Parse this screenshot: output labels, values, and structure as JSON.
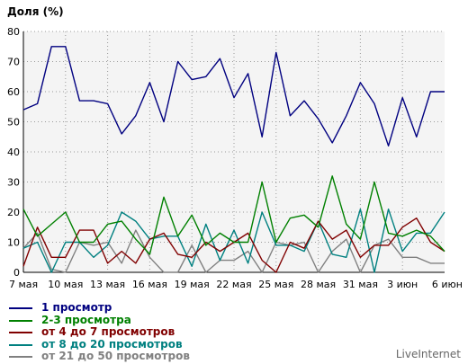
{
  "chart_data": {
    "type": "line",
    "ylabel": "Доля (%)",
    "ylim": [
      0,
      80
    ],
    "yticks": [
      0,
      10,
      20,
      30,
      40,
      50,
      60,
      70,
      80
    ],
    "grid": true,
    "legend_position": "bottom-left",
    "x": [
      "7 мая",
      "8 мая",
      "9 мая",
      "10 мая",
      "11 мая",
      "12 мая",
      "13 мая",
      "14 мая",
      "15 мая",
      "16 мая",
      "17 мая",
      "18 мая",
      "19 мая",
      "20 мая",
      "21 мая",
      "22 мая",
      "23 мая",
      "24 мая",
      "25 мая",
      "26 мая",
      "27 мая",
      "28 мая",
      "29 мая",
      "30 мая",
      "31 мая",
      "1 июн",
      "2 июн",
      "3 июн",
      "4 июн",
      "5 июн",
      "6 июн"
    ],
    "xtick_labels": [
      "7 мая",
      "10 мая",
      "13 мая",
      "16 мая",
      "19 мая",
      "22 мая",
      "25 мая",
      "28 мая",
      "31 мая",
      "3 июн",
      "6 июн"
    ],
    "xtick_index": [
      0,
      3,
      6,
      9,
      12,
      15,
      18,
      21,
      24,
      27,
      30
    ],
    "series": [
      {
        "name": "1 просмотр",
        "color": "#000080",
        "values": [
          54,
          56,
          75,
          75,
          57,
          57,
          56,
          46,
          52,
          63,
          50,
          70,
          64,
          65,
          71,
          58,
          66,
          45,
          73,
          52,
          57,
          51,
          43,
          52,
          63,
          56,
          42,
          58,
          45,
          60,
          60
        ]
      },
      {
        "name": "2-3 просмотра",
        "color": "#008000",
        "values": [
          21,
          12,
          16,
          20,
          10,
          10,
          16,
          17,
          11,
          6,
          25,
          12,
          19,
          9,
          13,
          10,
          10,
          30,
          10,
          18,
          19,
          15,
          32,
          16,
          11,
          30,
          13,
          12,
          14,
          12,
          7
        ]
      },
      {
        "name": "от 4 до 7 просмотров",
        "color": "#800000",
        "values": [
          2,
          15,
          5,
          5,
          14,
          14,
          3,
          7,
          3,
          11,
          13,
          6,
          5,
          10,
          7,
          10,
          13,
          4,
          0,
          10,
          8,
          17,
          11,
          14,
          5,
          9,
          9,
          15,
          18,
          10,
          7
        ]
      },
      {
        "name": "от 8 до 20 просмотров",
        "color": "#008080",
        "values": [
          8,
          10,
          0,
          10,
          10,
          5,
          9,
          20,
          17,
          11,
          12,
          12,
          2,
          16,
          4,
          14,
          3,
          20,
          9,
          9,
          7,
          17,
          6,
          5,
          21,
          0,
          21,
          7,
          13,
          13,
          20
        ]
      },
      {
        "name": "от 21 до 50 просмотров",
        "color": "#808080",
        "values": [
          8,
          13,
          1,
          0,
          10,
          9,
          10,
          3,
          14,
          5,
          0,
          0,
          9,
          0,
          4,
          4,
          7,
          0,
          10,
          9,
          10,
          0,
          7,
          11,
          0,
          9,
          11,
          5,
          5,
          3,
          3
        ]
      }
    ]
  },
  "branding": "LiveInternet"
}
